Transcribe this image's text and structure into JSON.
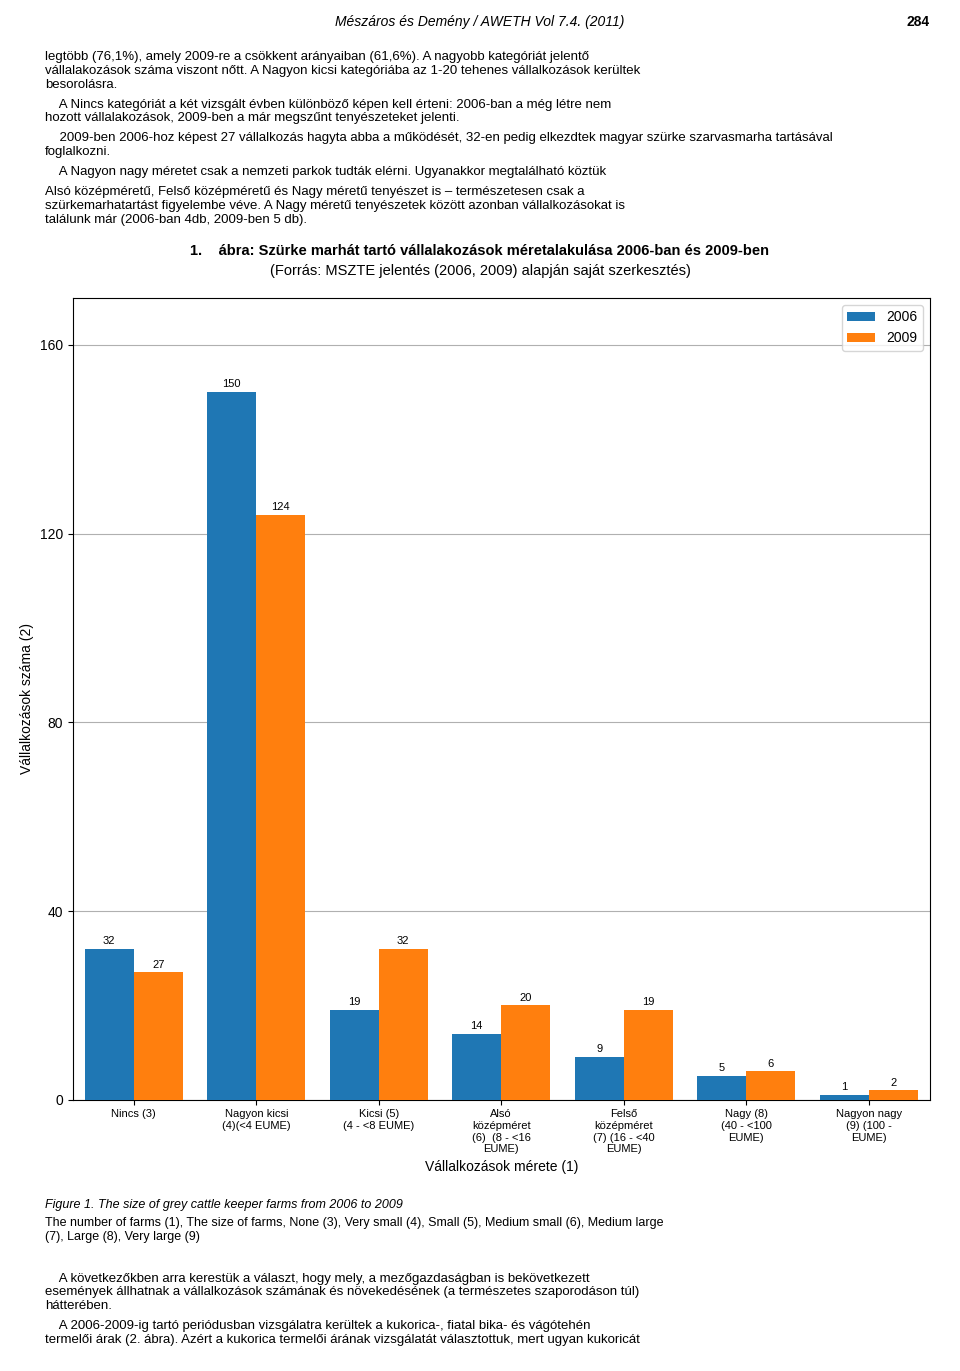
{
  "chart_data": {
    "type": "bar",
    "title": "1.    ábra: Szürke marhát tartó vállalakozások méretalakulása 2006-ban és 2009-ben",
    "subtitle": "(Forrás: MSZTE jelentés (2006, 2009) alapján saját szerkesztés)",
    "xlabel": "Vállalkozások mérete (1)",
    "ylabel": "Vállalkozások száma (2)",
    "categories": [
      "Nincs (3)",
      "Nagyon kicsi\n(4)(<4 EUME)",
      "Kicsi (5)\n(4 - <8 EUME)",
      "Alsó\nközépméret\n(6)  (8 - <16\nEUME)",
      "Felső\nközépméret\n(7) (16 - <40\nEUME)",
      "Nagy (8)\n(40 - <100\nEUME)",
      "Nagyon nagy\n(9) (100 -\nEUME)"
    ],
    "series": [
      {
        "name": "2006",
        "values": [
          32,
          150,
          19,
          14,
          9,
          5,
          1
        ]
      },
      {
        "name": "2009",
        "values": [
          27,
          124,
          32,
          20,
          19,
          6,
          2
        ]
      }
    ],
    "ylim": [
      0,
      170
    ],
    "yticks": [
      0,
      40,
      80,
      120,
      160
    ],
    "grid": true,
    "legend": "upper right",
    "data_labels": true,
    "annotations": [
      "Mészáros és Demény / AWETH Vol 7.4. (2011)",
      "284",
      "legtöbb (76,1%), amely 2009-re a csökkent arányaiban (61,6%). A nagyobb kategóriát jelentő\nvállalakozások száma viszont nőtt. A Nagyon kicsi kategóriába az 1-20 tehenes vállalkozások kerültek\nbesorolásra.",
      "    A Nincs kategóriát a két vizsgált évben különböző képen kell érteni: 2006-ban a még létre nem\nhozott vállalakozások, 2009-ben a már megszűnt tenyészeteket jelenti.",
      "    2009-ben 2006-hoz képest 27 vállalkozás hagyta abba a működését, 32-en pedig elkezdtek magyar szürke szarvasmarha tartásával\nfoglalkozni.",
      "    A Nagyon nagy méretet csak a nemzeti parkok tudták elérni. Ugyanakkor megtalálható köztük",
      "Alsó középméretű, Felső középméretű és Nagy méretű tenyészet is – természetesen csak a\nszürkemarhatartást figyelembe véve. A Nagy méretű tenyészetek között azonban vállalkozásokat is\ntalálunk már (2006-ban 4db, 2009-ben 5 db).",
      "Figure 1. The size of grey cattle keeper farms from 2006 to 2009",
      "The number of farms (1), The size of farms, None (3), Very small (4), Small (5), Medium small (6), Medium large\n(7), Large (8), Very large (9)",
      "    A következőkben arra kerestük a választ, hogy mely, a mezőgazdaságban is bekövetkezett\nesemények állhatnak a vállalkozások számának és növekedésének (a természetes szaporodáson túl)\nhátterében.",
      "    A 2006-2009-ig tartó periódusban vizsgálatra kerültek a kukorica-, fiatal bika- és vágótehén\ntermelői árak (2. ábra). Azért a kukorica termelői árának vizsgálatát választottuk, mert ugyan kukoricát"
    ]
  }
}
